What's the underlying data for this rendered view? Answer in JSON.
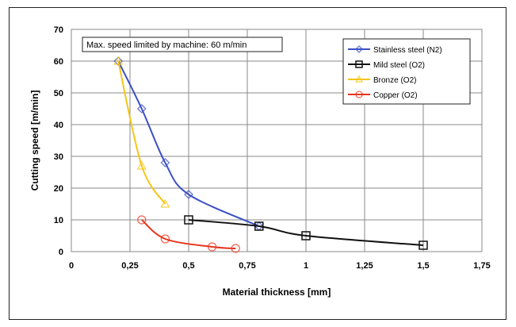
{
  "chart_data": {
    "type": "line",
    "title": "",
    "xlabel": "Material thickness [mm]",
    "ylabel": "Cutting speed [m/min]",
    "xlim": [
      0,
      1.75
    ],
    "ylim": [
      0,
      70
    ],
    "x_ticks": [
      "0",
      "0,25",
      "0,5",
      "0,75",
      "1",
      "1,25",
      "1,5",
      "1,75"
    ],
    "y_ticks": [
      "0",
      "10",
      "20",
      "30",
      "40",
      "50",
      "60",
      "70"
    ],
    "grid": true,
    "legend_position": "top-right",
    "annotation": "Max. speed limited by machine: 60 m/min",
    "series": [
      {
        "name": "Stainless steel (N2)",
        "color": "#3b4fc4",
        "marker": "diamond",
        "points": [
          [
            0.2,
            60
          ],
          [
            0.3,
            45
          ],
          [
            0.4,
            28
          ],
          [
            0.5,
            18
          ],
          [
            0.8,
            8
          ]
        ]
      },
      {
        "name": "Mild steel (O2)",
        "color": "#111111",
        "marker": "square",
        "points": [
          [
            0.5,
            10
          ],
          [
            0.8,
            8
          ],
          [
            1.0,
            5
          ],
          [
            1.5,
            2
          ]
        ]
      },
      {
        "name": "Bronze (O2)",
        "color": "#f5c518",
        "marker": "triangle",
        "points": [
          [
            0.2,
            60
          ],
          [
            0.3,
            27
          ],
          [
            0.4,
            15
          ]
        ]
      },
      {
        "name": "Copper (O2)",
        "color": "#e8341c",
        "marker": "circle",
        "points": [
          [
            0.3,
            10
          ],
          [
            0.4,
            4
          ],
          [
            0.6,
            1.5
          ],
          [
            0.7,
            1
          ]
        ]
      }
    ]
  }
}
